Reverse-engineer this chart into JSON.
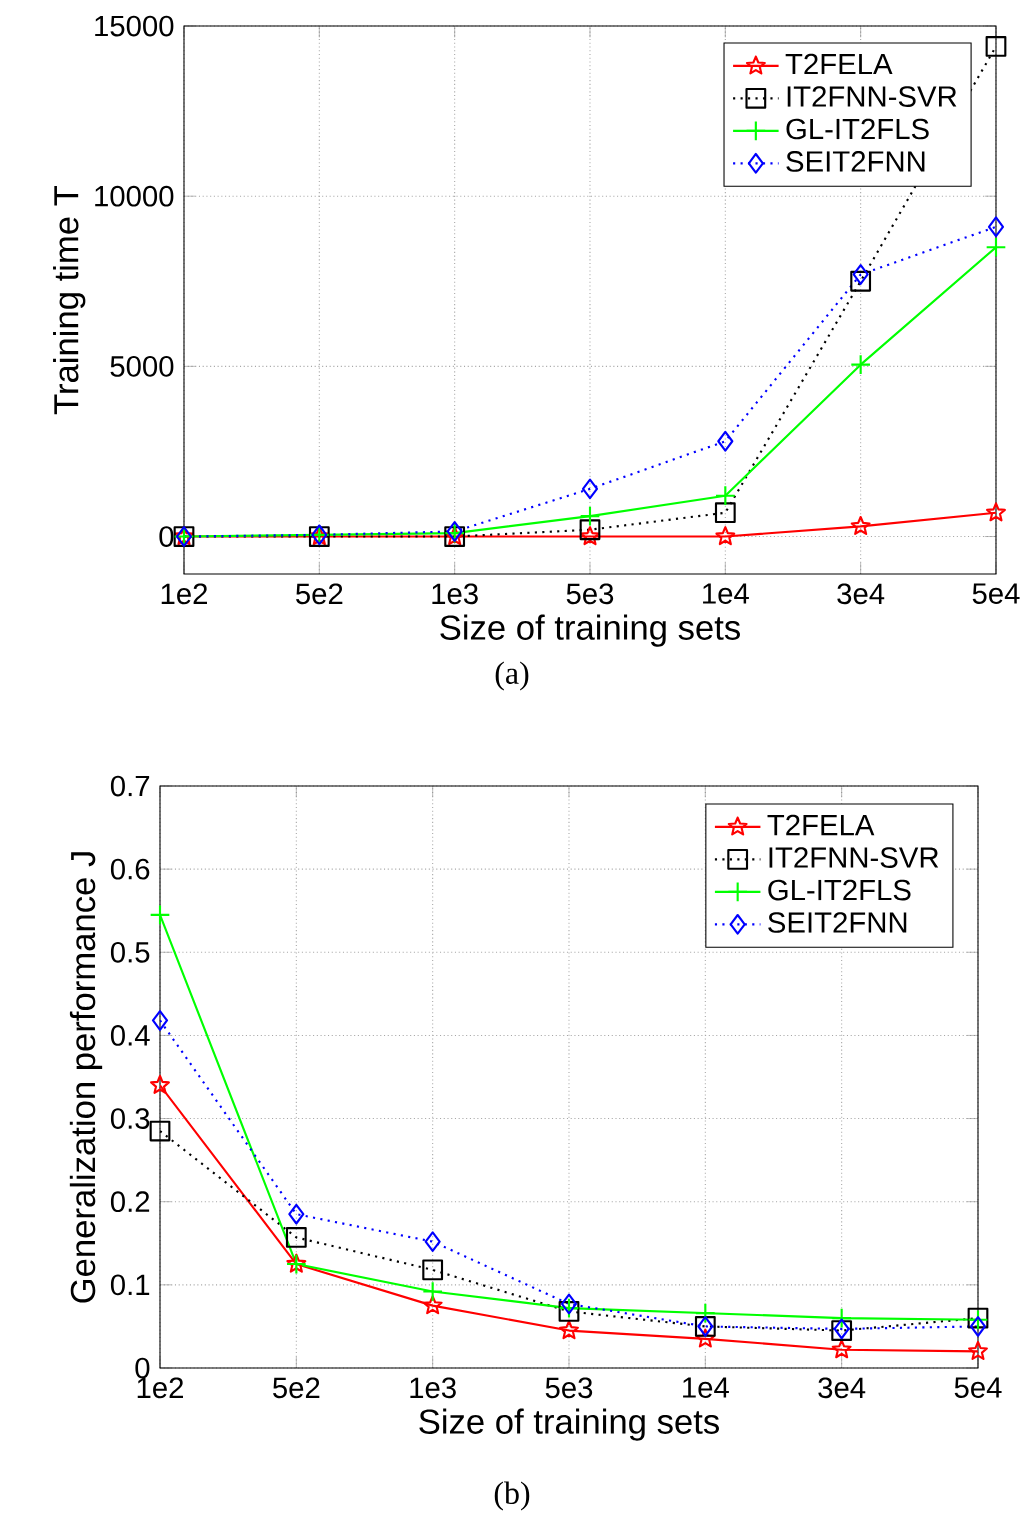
{
  "chart_data": [
    {
      "type": "line",
      "xlabel": "Size of training sets",
      "ylabel": "Training time T",
      "annotations": [
        "(a)"
      ],
      "categories": [
        "1e2",
        "5e2",
        "1e3",
        "5e3",
        "1e4",
        "3e4",
        "5e4"
      ],
      "ylim": [
        -1100,
        15000
      ],
      "yticks": [
        0,
        5000,
        10000,
        15000
      ],
      "grid": true,
      "legend": "top right",
      "series": [
        {
          "name": "T2FELA",
          "color": "#ff0000",
          "marker": "star",
          "line_style": "solid",
          "values": [
            0,
            0,
            0,
            0,
            0,
            300,
            700
          ]
        },
        {
          "name": "IT2FNN-SVR",
          "color": "#000000",
          "marker": "square",
          "line_style": "dotted",
          "values": [
            0,
            0,
            0,
            200,
            700,
            7500,
            14400
          ]
        },
        {
          "name": "GL-IT2FLS",
          "color": "#00ff00",
          "marker": "cross",
          "line_style": "solid",
          "values": [
            0,
            50,
            100,
            600,
            1200,
            5050,
            8500
          ]
        },
        {
          "name": "SEIT2FNN",
          "color": "#0000ff",
          "marker": "diamond",
          "line_style": "dotted",
          "values": [
            0,
            50,
            150,
            1400,
            2800,
            7700,
            9100
          ]
        }
      ]
    },
    {
      "type": "line",
      "xlabel": "Size of training sets",
      "ylabel": "Generalization performance J",
      "annotations": [
        "(b)"
      ],
      "categories": [
        "1e2",
        "5e2",
        "1e3",
        "5e3",
        "1e4",
        "3e4",
        "5e4"
      ],
      "ylim": [
        0,
        0.7
      ],
      "yticks": [
        0,
        0.1,
        0.2,
        0.3,
        0.4,
        0.5,
        0.6,
        0.7
      ],
      "grid": true,
      "legend": "top right",
      "series": [
        {
          "name": "T2FELA",
          "color": "#ff0000",
          "marker": "star",
          "line_style": "solid",
          "values": [
            0.34,
            0.125,
            0.075,
            0.045,
            0.035,
            0.022,
            0.02
          ]
        },
        {
          "name": "IT2FNN-SVR",
          "color": "#000000",
          "marker": "square",
          "line_style": "dotted",
          "values": [
            0.285,
            0.157,
            0.118,
            0.068,
            0.05,
            0.045,
            0.06
          ]
        },
        {
          "name": "GL-IT2FLS",
          "color": "#00ff00",
          "marker": "cross",
          "line_style": "solid",
          "values": [
            0.545,
            0.125,
            0.092,
            0.072,
            0.066,
            0.06,
            0.058
          ]
        },
        {
          "name": "SEIT2FNN",
          "color": "#0000ff",
          "marker": "diamond",
          "line_style": "dotted",
          "values": [
            0.418,
            0.185,
            0.152,
            0.077,
            0.05,
            0.047,
            0.05
          ]
        }
      ]
    }
  ]
}
